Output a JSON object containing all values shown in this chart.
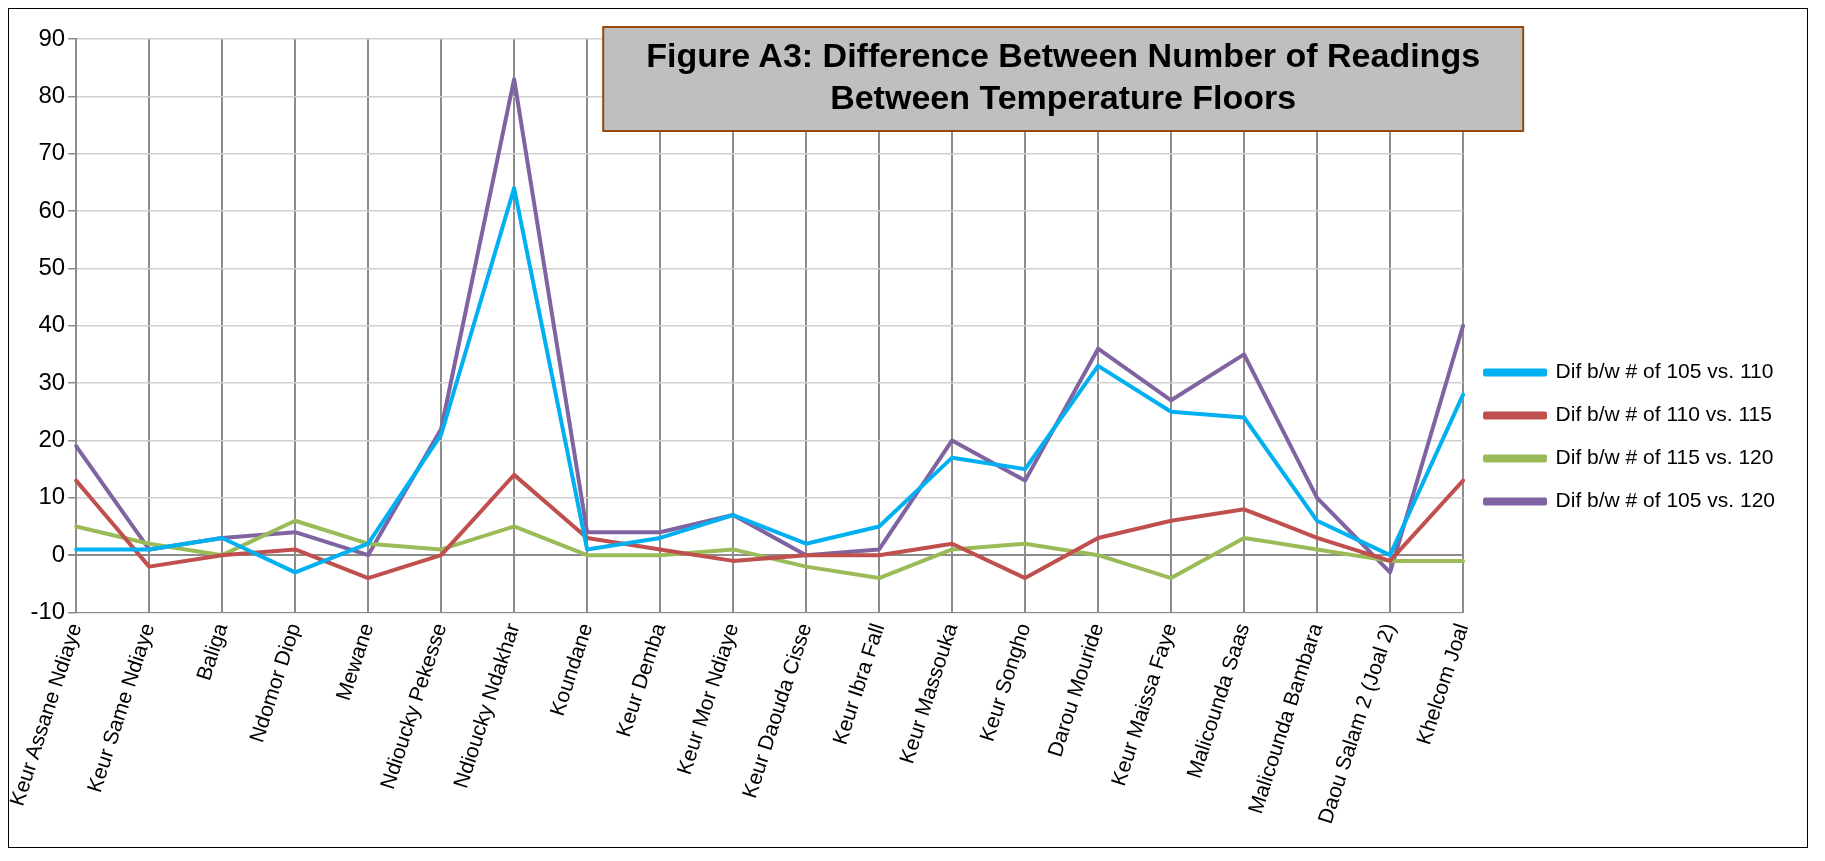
{
  "chart_data": {
    "type": "line",
    "title": "Figure A3: Difference Between Number of Readings Between Temperature Floors",
    "categories": [
      "Keur Assane Ndiaye",
      "Keur Same Ndiaye",
      "Baliga",
      "Ndomor Diop",
      "Mewane",
      "Ndioucky Pekesse",
      "Ndioucky Ndakhar",
      "Koundane",
      "Keur Demba",
      "Keur Mor Ndiaye",
      "Keur Daouda Cisse",
      "Keur Ibra Fall",
      "Keur Massouka",
      "Keur Songho",
      "Darou Mouride",
      "Keur Maissa Faye",
      "Malicounda Saas",
      "Malicounda Bambara",
      "Daou Salam 2 (Joal 2)",
      "Khelcom Joal"
    ],
    "series": [
      {
        "name": "Dif b/w # of 105 vs. 110",
        "color": "#00b0f0",
        "values": [
          1,
          1,
          3,
          -3,
          2,
          21,
          64,
          1,
          3,
          7,
          2,
          5,
          17,
          15,
          33,
          25,
          24,
          6,
          0,
          28
        ]
      },
      {
        "name": "Dif b/w # of 110 vs. 115",
        "color": "#c0504d",
        "values": [
          13,
          -2,
          0,
          1,
          -4,
          0,
          14,
          3,
          1,
          -1,
          0,
          0,
          2,
          -4,
          3,
          6,
          8,
          3,
          -1,
          13
        ]
      },
      {
        "name": "Dif b/w # of 115 vs. 120",
        "color": "#9bbb59",
        "values": [
          5,
          2,
          0,
          6,
          2,
          1,
          5,
          0,
          0,
          1,
          -2,
          -4,
          1,
          2,
          0,
          -4,
          3,
          1,
          -1,
          -1
        ]
      },
      {
        "name": "Dif b/w # of 105 vs. 120",
        "color": "#8064a2",
        "values": [
          19,
          1,
          3,
          4,
          0,
          22,
          83,
          4,
          4,
          7,
          0,
          1,
          20,
          13,
          36,
          27,
          35,
          10,
          -3,
          40
        ]
      }
    ],
    "ylim": [
      -10,
      90
    ],
    "yticks": [
      -10,
      0,
      10,
      20,
      30,
      40,
      50,
      60,
      70,
      80,
      90
    ],
    "grid": true,
    "legend": "right",
    "marker": "none",
    "line_style": "solid"
  }
}
